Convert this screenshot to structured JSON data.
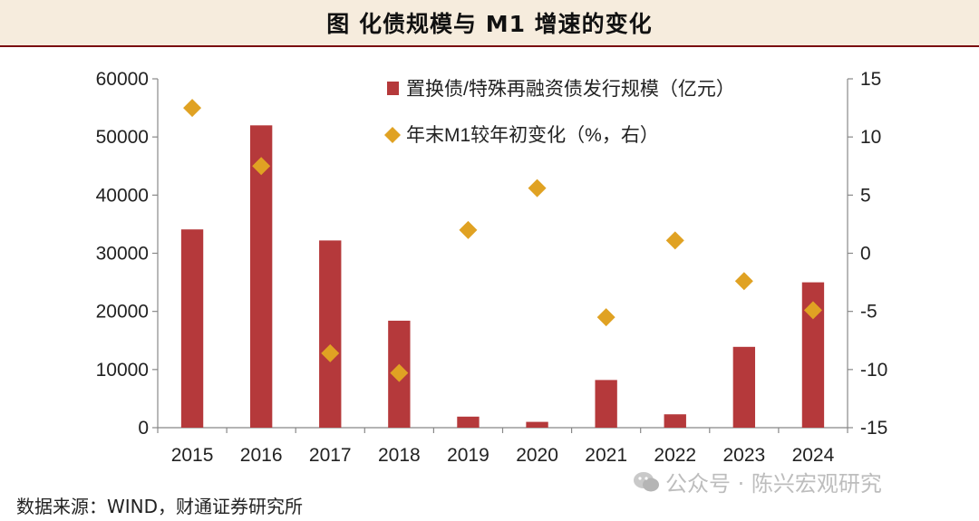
{
  "title": "图  化债规模与 M1 增速的变化",
  "source": "数据来源：WIND，财通证券研究所",
  "watermark": "公众号 · 陈兴宏观研究",
  "colors": {
    "bar": "#b5393b",
    "marker": "#e0a223",
    "title_bg": "#f6ecdd",
    "title_rule": "#7a0f10"
  },
  "chart_data": {
    "type": "bar",
    "categories": [
      "2015",
      "2016",
      "2017",
      "2018",
      "2019",
      "2020",
      "2021",
      "2022",
      "2023",
      "2024"
    ],
    "series": [
      {
        "name": "置换债/特殊再融资债发行规模（亿元）",
        "kind": "bar",
        "axis": "left",
        "values": [
          34100,
          52000,
          32200,
          18400,
          1900,
          1000,
          8200,
          2300,
          13900,
          25000
        ]
      },
      {
        "name": "年末M1较年初变化（%，右）",
        "kind": "scatter",
        "axis": "right",
        "values": [
          12.5,
          7.5,
          -8.6,
          -10.3,
          2.0,
          5.6,
          -5.5,
          1.1,
          -2.4,
          -4.9
        ]
      }
    ],
    "y_left": {
      "min": 0,
      "max": 60000,
      "ticks": [
        "0",
        "10000",
        "20000",
        "30000",
        "40000",
        "50000",
        "60000"
      ]
    },
    "y_right": {
      "min": -15,
      "max": 15,
      "ticks": [
        "-15",
        "-10",
        "-5",
        "0",
        "5",
        "10",
        "15"
      ]
    },
    "grid": false,
    "legend_position": "top-right"
  }
}
